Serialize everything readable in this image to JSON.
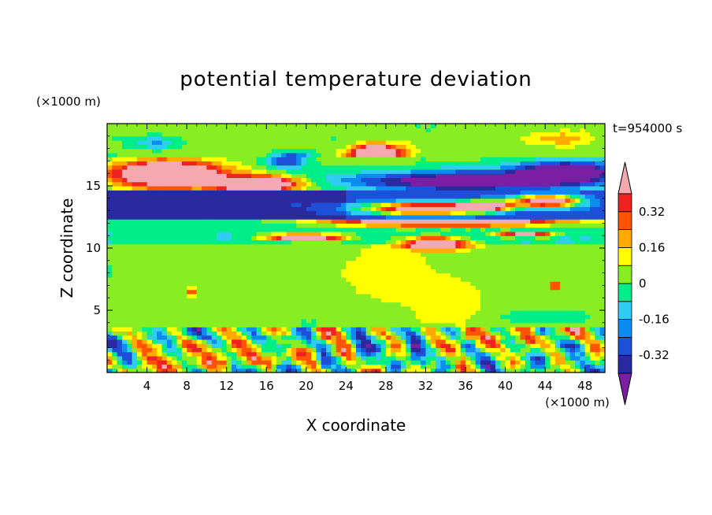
{
  "chart_data": {
    "type": "heatmap",
    "title": "potential temperature deviation",
    "xlabel": "X coordinate",
    "ylabel": "Z coordinate",
    "x_unit": "(×1000 m)",
    "y_unit": "(×1000 m)",
    "time_label": "t=954000 s",
    "xlim": [
      0,
      50
    ],
    "ylim": [
      0,
      20
    ],
    "x_ticks": [
      4,
      8,
      12,
      16,
      20,
      24,
      28,
      32,
      36,
      40,
      44,
      48
    ],
    "y_ticks": [
      5,
      10,
      15
    ],
    "colorbar": {
      "levels": [
        -0.4,
        -0.32,
        -0.24,
        -0.16,
        -0.08,
        0,
        0.08,
        0.16,
        0.24,
        0.32,
        0.4
      ],
      "colors": [
        "#7a1fa2",
        "#2a2aa0",
        "#1e4fd8",
        "#0a8cf0",
        "#30cdf0",
        "#00ee88",
        "#88ee22",
        "#ffff00",
        "#ffaa00",
        "#ff5500",
        "#ee2222",
        "#f4a8b0"
      ],
      "tick_labels": [
        "0.32",
        "0.16",
        "0",
        "-0.16",
        "-0.32"
      ],
      "tick_values": [
        0.32,
        0.16,
        0,
        -0.16,
        -0.32
      ]
    }
  }
}
